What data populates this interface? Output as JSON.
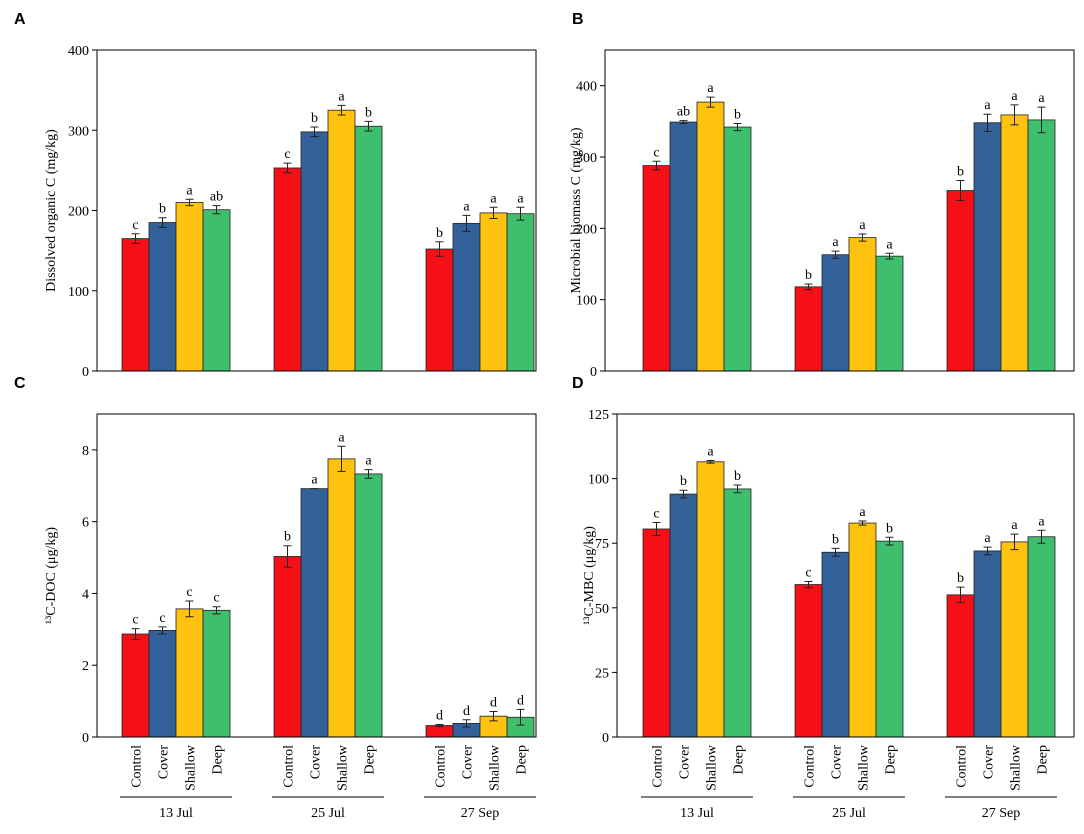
{
  "chart_data": [
    {
      "type": "bar",
      "panel": "A",
      "ylabel": "Dissolved organic C (mg/kg)",
      "ylim": [
        0,
        400
      ],
      "yticks": [
        0,
        100,
        200,
        300,
        400
      ],
      "series": [
        {
          "color": "#f41016",
          "values": [
            165,
            253,
            152
          ],
          "errors": [
            6,
            6,
            9
          ],
          "letters": [
            "c",
            "c",
            "b"
          ]
        },
        {
          "color": "#336199",
          "values": [
            185,
            298,
            184
          ],
          "errors": [
            6,
            6,
            10
          ],
          "letters": [
            "b",
            "b",
            "a"
          ]
        },
        {
          "color": "#ffc20e",
          "values": [
            210,
            325,
            197
          ],
          "errors": [
            4,
            6,
            7
          ],
          "letters": [
            "a",
            "a",
            "a"
          ]
        },
        {
          "color": "#3dbf6e",
          "values": [
            201,
            305,
            196
          ],
          "errors": [
            5,
            6,
            8
          ],
          "letters": [
            "ab",
            "b",
            "a"
          ]
        }
      ]
    },
    {
      "type": "bar",
      "panel": "B",
      "ylabel": "Microbial biomass C (mg/kg)",
      "ylim": [
        0,
        450
      ],
      "yticks": [
        0,
        100,
        200,
        300,
        400
      ],
      "series": [
        {
          "color": "#f41016",
          "values": [
            288,
            118,
            253
          ],
          "errors": [
            6,
            4,
            14
          ],
          "letters": [
            "c",
            "b",
            "b"
          ]
        },
        {
          "color": "#336199",
          "values": [
            349,
            163,
            348
          ],
          "errors": [
            2,
            5,
            12
          ],
          "letters": [
            "ab",
            "a",
            "a"
          ]
        },
        {
          "color": "#ffc20e",
          "values": [
            377,
            187,
            359
          ],
          "errors": [
            7,
            5,
            14
          ],
          "letters": [
            "a",
            "a",
            "a"
          ]
        },
        {
          "color": "#3dbf6e",
          "values": [
            342,
            161,
            352
          ],
          "errors": [
            5,
            4,
            18
          ],
          "letters": [
            "b",
            "a",
            "a"
          ]
        }
      ]
    },
    {
      "type": "bar",
      "panel": "C",
      "ylabel": "¹³C-DOC (μg/kg)",
      "ylim": [
        0,
        9
      ],
      "yticks": [
        0,
        2,
        4,
        6,
        8
      ],
      "categories": [
        "13 Jul",
        "25 Jul",
        "27 Sep"
      ],
      "series": [
        {
          "name": "Control",
          "color": "#f41016",
          "values": [
            2.87,
            5.03,
            0.32
          ],
          "errors": [
            0.15,
            0.3,
            0.03
          ],
          "letters": [
            "c",
            "b",
            "d"
          ]
        },
        {
          "name": "Cover",
          "color": "#336199",
          "values": [
            2.97,
            6.92,
            0.38
          ],
          "errors": [
            0.1,
            0,
            0.1
          ],
          "letters": [
            "c",
            "a",
            "d"
          ]
        },
        {
          "name": "Shallow",
          "color": "#ffc20e",
          "values": [
            3.57,
            7.75,
            0.58
          ],
          "errors": [
            0.22,
            0.35,
            0.13
          ],
          "letters": [
            "c",
            "a",
            "d"
          ]
        },
        {
          "name": "Deep",
          "color": "#3dbf6e",
          "values": [
            3.53,
            7.33,
            0.55
          ],
          "errors": [
            0.1,
            0.12,
            0.22
          ],
          "letters": [
            "c",
            "a",
            "d"
          ]
        }
      ]
    },
    {
      "type": "bar",
      "panel": "D",
      "ylabel": "¹³C-MBC (μg/kg)",
      "ylim": [
        0,
        125
      ],
      "yticks": [
        0,
        25,
        50,
        75,
        100,
        125
      ],
      "categories": [
        "13 Jul",
        "25 Jul",
        "27 Sep"
      ],
      "series": [
        {
          "name": "Control",
          "color": "#f41016",
          "values": [
            80.5,
            59,
            55
          ],
          "errors": [
            2.5,
            1.2,
            3
          ],
          "letters": [
            "c",
            "c",
            "b"
          ]
        },
        {
          "name": "Cover",
          "color": "#336199",
          "values": [
            94,
            71.5,
            72
          ],
          "errors": [
            1.5,
            1.5,
            1.5
          ],
          "letters": [
            "b",
            "b",
            "a"
          ]
        },
        {
          "name": "Shallow",
          "color": "#ffc20e",
          "values": [
            106.5,
            82.8,
            75.5
          ],
          "errors": [
            0.5,
            0.8,
            3
          ],
          "letters": [
            "a",
            "a",
            "a"
          ]
        },
        {
          "name": "Deep",
          "color": "#3dbf6e",
          "values": [
            96,
            75.8,
            77.5
          ],
          "errors": [
            1.5,
            1.5,
            2.5
          ],
          "letters": [
            "b",
            "b",
            "a"
          ]
        }
      ]
    }
  ]
}
